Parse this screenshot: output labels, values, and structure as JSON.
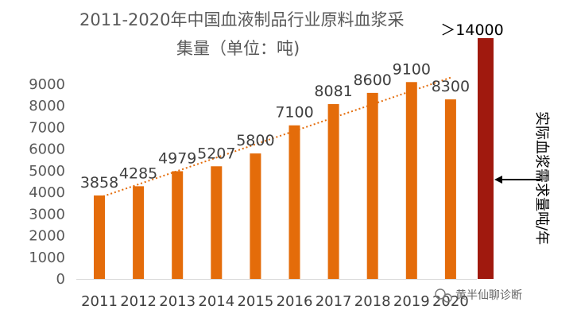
{
  "chart_data": {
    "type": "bar",
    "title_line1": "2011-2020年中国血液制品行业原料血浆采",
    "title_line2": "集量（单位：吨)",
    "categories": [
      "2011",
      "2012",
      "2013",
      "2014",
      "2015",
      "2016",
      "2017",
      "2018",
      "2019",
      "2020"
    ],
    "values": [
      3858,
      4285,
      4979,
      5207,
      5800,
      7100,
      8081,
      8600,
      9100,
      8300
    ],
    "ylim": [
      0,
      9000
    ],
    "yticks": [
      0,
      1000,
      2000,
      3000,
      4000,
      5000,
      6000,
      7000,
      8000,
      9000
    ],
    "grid": false,
    "trendline": "linear",
    "extra_bar": {
      "label": "＞14000",
      "value": 14000,
      "annotation": "实际血浆需求量吨/年"
    },
    "colors": {
      "bar": "#E46C0A",
      "trend": "#E46C0A",
      "extra_bar": "#A0190E",
      "axis": "#D9D9D9"
    }
  },
  "watermark": "黄半仙聊诊断"
}
